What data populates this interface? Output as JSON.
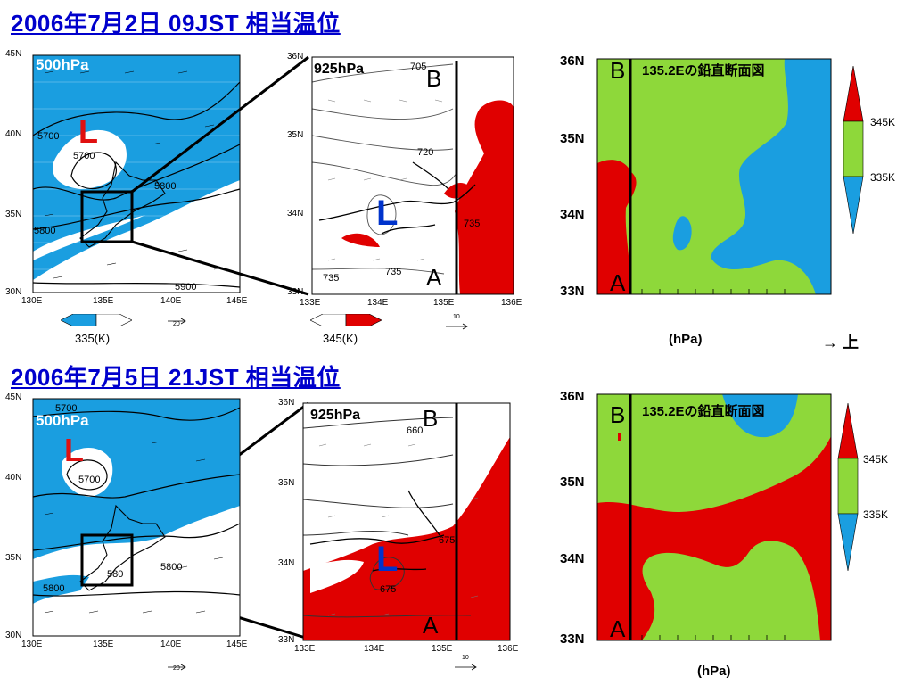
{
  "rows": [
    {
      "title": "2006年7月2日 09JST 相当温位",
      "left_map": {
        "level": "500hPa",
        "low": "L",
        "contours": [
          "5700",
          "5700",
          "5800",
          "5800",
          "5900"
        ],
        "lat_ticks": [
          "45N",
          "40N",
          "35N",
          "30N"
        ],
        "lon_ticks": [
          "130E",
          "135E",
          "140E",
          "145E"
        ],
        "vector_ref": "20",
        "colorbar_label": "335(K)"
      },
      "zoom_map": {
        "level": "925hPa",
        "low": "L",
        "contours": [
          "705",
          "720",
          "735",
          "735",
          "735"
        ],
        "lat_ticks": [
          "36N",
          "35N",
          "34N",
          "33N"
        ],
        "lon_ticks": [
          "133E",
          "134E",
          "135E",
          "136E"
        ],
        "point_a": "A",
        "point_b": "B",
        "vector_ref": "10",
        "colorbar_label": "345(K)"
      },
      "cross_section": {
        "title": "135.2Eの鉛直断面図",
        "lat_ticks": [
          "36N",
          "35N",
          "34N",
          "33N"
        ],
        "point_a": "A",
        "point_b": "B",
        "x_label": "(hPa)",
        "upward_note": "→ 上"
      },
      "legend": {
        "upper": "345K",
        "lower": "335K"
      }
    },
    {
      "title": "2006年7月5日 21JST 相当温位",
      "left_map": {
        "level": "500hPa",
        "low": "L",
        "contours": [
          "5700",
          "5700",
          "5800",
          "5800",
          "580"
        ],
        "lat_ticks": [
          "45N",
          "40N",
          "35N",
          "30N"
        ],
        "lon_ticks": [
          "130E",
          "135E",
          "140E",
          "145E"
        ],
        "vector_ref": "20"
      },
      "zoom_map": {
        "level": "925hPa",
        "low": "L",
        "contours": [
          "660",
          "675",
          "675"
        ],
        "lat_ticks": [
          "36N",
          "35N",
          "34N",
          "33N"
        ],
        "lon_ticks": [
          "133E",
          "134E",
          "135E",
          "136E"
        ],
        "point_a": "A",
        "point_b": "B",
        "vector_ref": "10"
      },
      "cross_section": {
        "title": "135.2Eの鉛直断面図",
        "lat_ticks": [
          "36N",
          "35N",
          "34N",
          "33N"
        ],
        "point_a": "A",
        "point_b": "B",
        "x_label": "(hPa)"
      },
      "legend": {
        "upper": "345K",
        "lower": "335K"
      }
    }
  ],
  "colors": {
    "title": "#0000cc",
    "cold_fill": "#1a9ee0",
    "warm_fill": "#e00000",
    "mid_fill": "#8ed83a",
    "low_label": "#e01010",
    "low_label_zoom": "#0033cc"
  }
}
